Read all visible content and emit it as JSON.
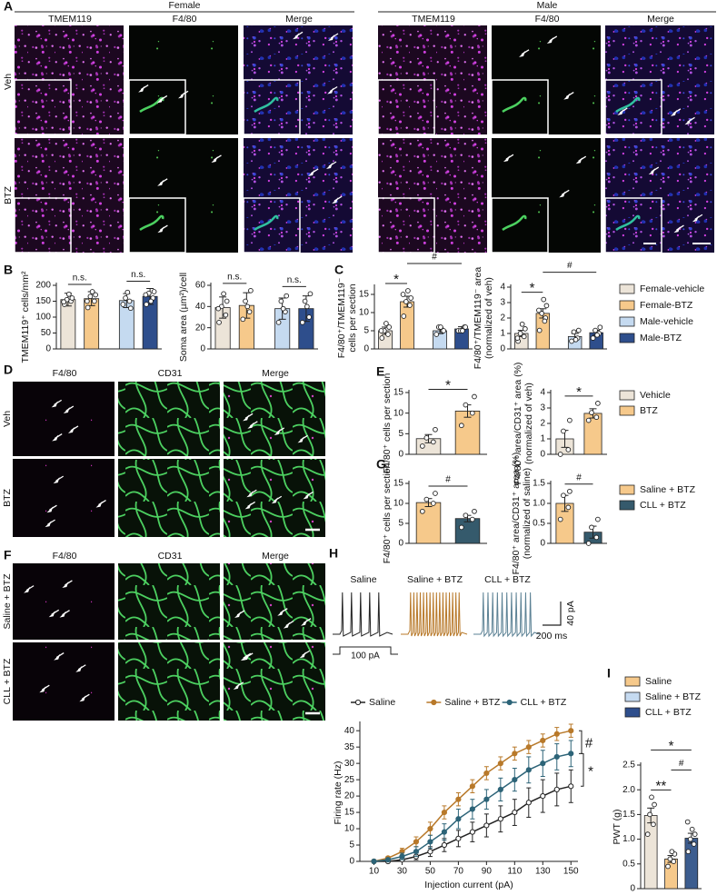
{
  "panels": {
    "letters": [
      "A",
      "B",
      "C",
      "D",
      "E",
      "F",
      "G",
      "H",
      "I"
    ],
    "A": {
      "groups": [
        {
          "title": "Female",
          "columns": [
            "TMEM119",
            "F4/80",
            "Merge"
          ]
        },
        {
          "title": "Male",
          "columns": [
            "TMEM119",
            "F4/80",
            "Merge"
          ]
        }
      ],
      "rows": [
        "Veh",
        "BTZ"
      ]
    },
    "D": {
      "columns": [
        "F4/80",
        "CD31",
        "Merge"
      ],
      "rows": [
        "Veh",
        "BTZ"
      ]
    },
    "F": {
      "columns": [
        "F4/80",
        "CD31",
        "Merge"
      ],
      "rows": [
        "Saline + BTZ",
        "CLL + BTZ"
      ]
    },
    "H_traces": {
      "labels": [
        "Saline",
        "Saline + BTZ",
        "CLL + BTZ"
      ],
      "colors": [
        "#222222",
        "#b8792a",
        "#5b8194"
      ],
      "scale_current": "40 pA",
      "scale_time": "200 ms",
      "step": "100 pA"
    }
  },
  "legends": {
    "BC": [
      {
        "name": "Female-vehicle",
        "color": "#ece4d8"
      },
      {
        "name": "Female-BTZ",
        "color": "#f6c98b"
      },
      {
        "name": "Male-vehicle",
        "color": "#c5daf0"
      },
      {
        "name": "Male-BTZ",
        "color": "#2e4e8c"
      }
    ],
    "E": [
      {
        "name": "Vehicle",
        "color": "#ece4d8"
      },
      {
        "name": "BTZ",
        "color": "#f6c98b"
      }
    ],
    "G": [
      {
        "name": "Saline + BTZ",
        "color": "#f6c98b"
      },
      {
        "name": "CLL + BTZ",
        "color": "#355a6c"
      }
    ],
    "I": [
      {
        "name": "Saline",
        "color": "#f6c98b"
      },
      {
        "name": "Saline + BTZ",
        "color": "#c5daf0"
      },
      {
        "name": "CLL + BTZ",
        "color": "#2e4e8c"
      }
    ]
  },
  "chart_data": [
    {
      "type": "bar",
      "ylabel": [
        "TMEM119⁺ cells/mm²"
      ],
      "ylim": [
        0,
        200
      ],
      "yticks": [
        0,
        50,
        100,
        150,
        200
      ],
      "values": [
        155,
        158,
        152,
        165
      ],
      "errors": [
        20,
        22,
        22,
        25
      ],
      "colors": [
        "#ece4d8",
        "#f6c98b",
        "#c5daf0",
        "#2e4e8c"
      ],
      "points": [
        [
          140,
          150,
          155,
          160,
          172,
          148
        ],
        [
          130,
          150,
          165,
          170,
          180,
          150
        ],
        [
          140,
          150,
          160,
          128,
          178
        ],
        [
          140,
          160,
          175,
          180,
          150,
          170
        ]
      ],
      "annotations": [
        {
          "text": "n.s.",
          "between": [
            0,
            1
          ]
        },
        {
          "text": "n.s.",
          "between": [
            2,
            3
          ]
        }
      ]
    },
    {
      "type": "bar",
      "ylabel": [
        "Soma area (µm²)/cell"
      ],
      "ylim": [
        0,
        60
      ],
      "yticks": [
        0,
        20,
        40,
        60
      ],
      "values": [
        39,
        41,
        38,
        38
      ],
      "errors": [
        10,
        12,
        10,
        12
      ],
      "colors": [
        "#ece4d8",
        "#f6c98b",
        "#c5daf0",
        "#2e4e8c"
      ],
      "points": [
        [
          25,
          32,
          40,
          45,
          52,
          38
        ],
        [
          28,
          35,
          45,
          55,
          40
        ],
        [
          25,
          35,
          45,
          50,
          38
        ],
        [
          25,
          30,
          45,
          52,
          40
        ]
      ],
      "annotations": [
        {
          "text": "n.s.",
          "between": [
            0,
            1
          ]
        },
        {
          "text": "n.s.",
          "between": [
            2,
            3
          ]
        }
      ]
    },
    {
      "type": "bar",
      "ylabel": [
        "F4/80⁺/TMEM119⁻",
        "cells per section"
      ],
      "ylim": [
        0,
        17
      ],
      "yticks": [
        0,
        5,
        10,
        15
      ],
      "values": [
        5,
        13,
        5,
        5.5
      ],
      "errors": [
        1,
        1.5,
        0.8,
        0.6
      ],
      "colors": [
        "#ece4d8",
        "#f6c98b",
        "#c5daf0",
        "#2e4e8c"
      ],
      "points": [
        [
          3,
          4,
          5,
          6,
          7,
          5
        ],
        [
          9,
          12,
          13,
          14,
          16,
          15
        ],
        [
          4,
          5,
          6,
          5,
          6
        ],
        [
          5,
          6,
          5,
          6,
          5
        ]
      ],
      "annotations": [
        {
          "text": "*",
          "between": [
            0,
            1
          ]
        },
        {
          "text": "#",
          "between": [
            1,
            3
          ]
        }
      ]
    },
    {
      "type": "bar",
      "ylabel": [
        "F4/80⁺/TMEM119⁻ area",
        "(normalized of veh)"
      ],
      "ylim": [
        0,
        4
      ],
      "yticks": [
        0,
        1,
        2,
        3,
        4
      ],
      "values": [
        1,
        2.3,
        0.8,
        1.05
      ],
      "errors": [
        0.2,
        0.3,
        0.2,
        0.15
      ],
      "colors": [
        "#ece4d8",
        "#f6c98b",
        "#c5daf0",
        "#2e4e8c"
      ],
      "points": [
        [
          0.5,
          0.8,
          1,
          1.3,
          1.6,
          0.7
        ],
        [
          1.2,
          2,
          2.3,
          2.8,
          3.2,
          2.5,
          1.8
        ],
        [
          0.5,
          0.7,
          1.1,
          1.2,
          0.6
        ],
        [
          0.7,
          1,
          1.2,
          1.4,
          0.9
        ]
      ],
      "annotations": [
        {
          "text": "*",
          "between": [
            0,
            1
          ]
        },
        {
          "text": "#",
          "between": [
            1,
            3
          ]
        }
      ]
    },
    {
      "type": "bar",
      "ylabel": [
        "F4/80⁺ cells per section"
      ],
      "ylim": [
        0,
        15
      ],
      "yticks": [
        0,
        5,
        10,
        15
      ],
      "values": [
        3.8,
        10.5
      ],
      "errors": [
        1,
        1.5
      ],
      "colors": [
        "#ece4d8",
        "#f6c98b"
      ],
      "points": [
        [
          2,
          3,
          4,
          6
        ],
        [
          7,
          10,
          12,
          14
        ]
      ],
      "annotations": [
        {
          "text": "*",
          "between": [
            0,
            1
          ]
        }
      ]
    },
    {
      "type": "bar",
      "ylabel": [
        "F4/80⁺ area/CD31⁺ area (%)",
        "(normalized of veh)"
      ],
      "ylim": [
        0,
        4
      ],
      "yticks": [
        0,
        1,
        2,
        3,
        4
      ],
      "values": [
        1,
        2.65
      ],
      "errors": [
        0.55,
        0.3
      ],
      "colors": [
        "#ece4d8",
        "#f6c98b"
      ],
      "points": [
        [
          0,
          0.3,
          1.5,
          2.2
        ],
        [
          2.2,
          2.4,
          2.7,
          3.3
        ]
      ],
      "annotations": [
        {
          "text": "*",
          "between": [
            0,
            1
          ]
        }
      ]
    },
    {
      "type": "bar",
      "ylabel": [
        "F4/80⁺ cells per section"
      ],
      "ylim": [
        0,
        15
      ],
      "yticks": [
        0,
        5,
        10,
        15
      ],
      "values": [
        10.2,
        6.2
      ],
      "errors": [
        1,
        0.8
      ],
      "colors": [
        "#f6c98b",
        "#355a6c"
      ],
      "points": [
        [
          8,
          10,
          11,
          12.5
        ],
        [
          4,
          6,
          7,
          8
        ]
      ],
      "annotations": [
        {
          "text": "#",
          "between": [
            0,
            1
          ]
        }
      ]
    },
    {
      "type": "bar",
      "ylabel": [
        "F4/80⁺ area/CD31⁺ area (%)",
        "(normalized of saline)"
      ],
      "ylim": [
        0,
        1.5
      ],
      "yticks": [
        0,
        0.5,
        {
          "value": 1,
          "label": "1.0"
        },
        1.5
      ],
      "values": [
        1,
        0.28
      ],
      "errors": [
        0.2,
        0.15
      ],
      "colors": [
        "#f6c98b",
        "#355a6c"
      ],
      "points": [
        [
          0.6,
          0.9,
          1.2,
          1.3
        ],
        [
          0,
          0.15,
          0.4,
          0.6
        ]
      ],
      "annotations": [
        {
          "text": "#",
          "between": [
            0,
            1
          ]
        }
      ]
    },
    {
      "type": "line",
      "xlabel": "Injection current (pA)",
      "ylabel": [
        "Firing rate (Hz)"
      ],
      "x": [
        10,
        20,
        30,
        40,
        50,
        60,
        70,
        80,
        90,
        100,
        110,
        120,
        130,
        140,
        150
      ],
      "xlim": [
        0,
        155
      ],
      "xticks": [
        10,
        30,
        50,
        70,
        90,
        110,
        130,
        150
      ],
      "ylim": [
        0,
        42
      ],
      "yticks": [
        0,
        5,
        10,
        15,
        20,
        25,
        30,
        35,
        40
      ],
      "series": [
        {
          "name": "Saline",
          "color": "#222222",
          "open": true,
          "values": [
            0,
            0,
            0.5,
            1.5,
            3,
            5,
            7,
            9,
            11,
            13,
            15,
            18,
            20,
            22,
            23
          ],
          "errors": [
            0.2,
            0.3,
            0.5,
            1,
            1.5,
            2,
            2.5,
            3,
            3.5,
            4,
            4,
            4.5,
            5,
            5,
            5
          ]
        },
        {
          "name": "Saline + BTZ",
          "color": "#b8792a",
          "open": false,
          "values": [
            0,
            1,
            3,
            6,
            10,
            15,
            19,
            23,
            27,
            30,
            33,
            35,
            37,
            39,
            40
          ],
          "errors": [
            0.2,
            0.5,
            1,
            1.5,
            2,
            2,
            2,
            2,
            2,
            2,
            2,
            2,
            2,
            2,
            2
          ]
        },
        {
          "name": "CLL + BTZ",
          "color": "#2d6478",
          "open": false,
          "values": [
            0,
            0.5,
            1.5,
            3,
            6,
            9,
            13,
            16,
            19,
            22,
            25,
            28,
            30,
            32,
            33
          ],
          "errors": [
            0.2,
            0.5,
            1,
            1.5,
            2,
            2.5,
            3,
            3,
            3,
            3.5,
            3.5,
            4,
            4,
            4,
            4
          ]
        }
      ],
      "annotations": [
        {
          "text": "#",
          "between": [
            1,
            2
          ]
        },
        {
          "text": "*",
          "between": [
            2,
            0
          ]
        }
      ]
    },
    {
      "type": "bar",
      "ylabel": [
        "PWT (g)"
      ],
      "ylim": [
        0,
        2.5
      ],
      "yticks": [
        0,
        0.5,
        {
          "value": 1,
          "label": "1.0"
        },
        1.5,
        {
          "value": 2,
          "label": "2.0"
        },
        2.5
      ],
      "values": [
        1.48,
        0.6,
        1.02
      ],
      "errors": [
        0.15,
        0.07,
        0.1
      ],
      "colors": [
        "#ece4d8",
        "#f6c98b",
        "#3c5d8f"
      ],
      "points": [
        [
          1.1,
          1.3,
          1.5,
          1.7,
          1.85
        ],
        [
          0.45,
          0.55,
          0.6,
          0.7,
          0.75
        ],
        [
          0.75,
          0.9,
          1.0,
          1.1,
          1.2,
          1.35
        ]
      ],
      "annotations": [
        {
          "text": "**",
          "between": [
            0,
            1
          ]
        },
        {
          "text": "#",
          "between": [
            1,
            2
          ]
        },
        {
          "text": "*",
          "between": [
            0,
            2
          ]
        }
      ]
    }
  ]
}
